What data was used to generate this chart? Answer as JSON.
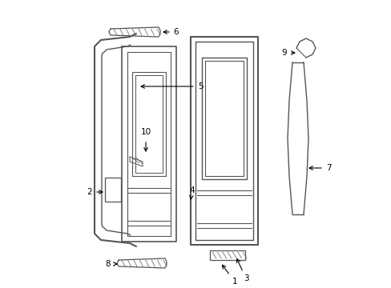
{
  "background_color": "#ffffff",
  "line_color": "#555555",
  "label_color": "#000000",
  "figsize": [
    4.89,
    3.6
  ],
  "dpi": 100
}
